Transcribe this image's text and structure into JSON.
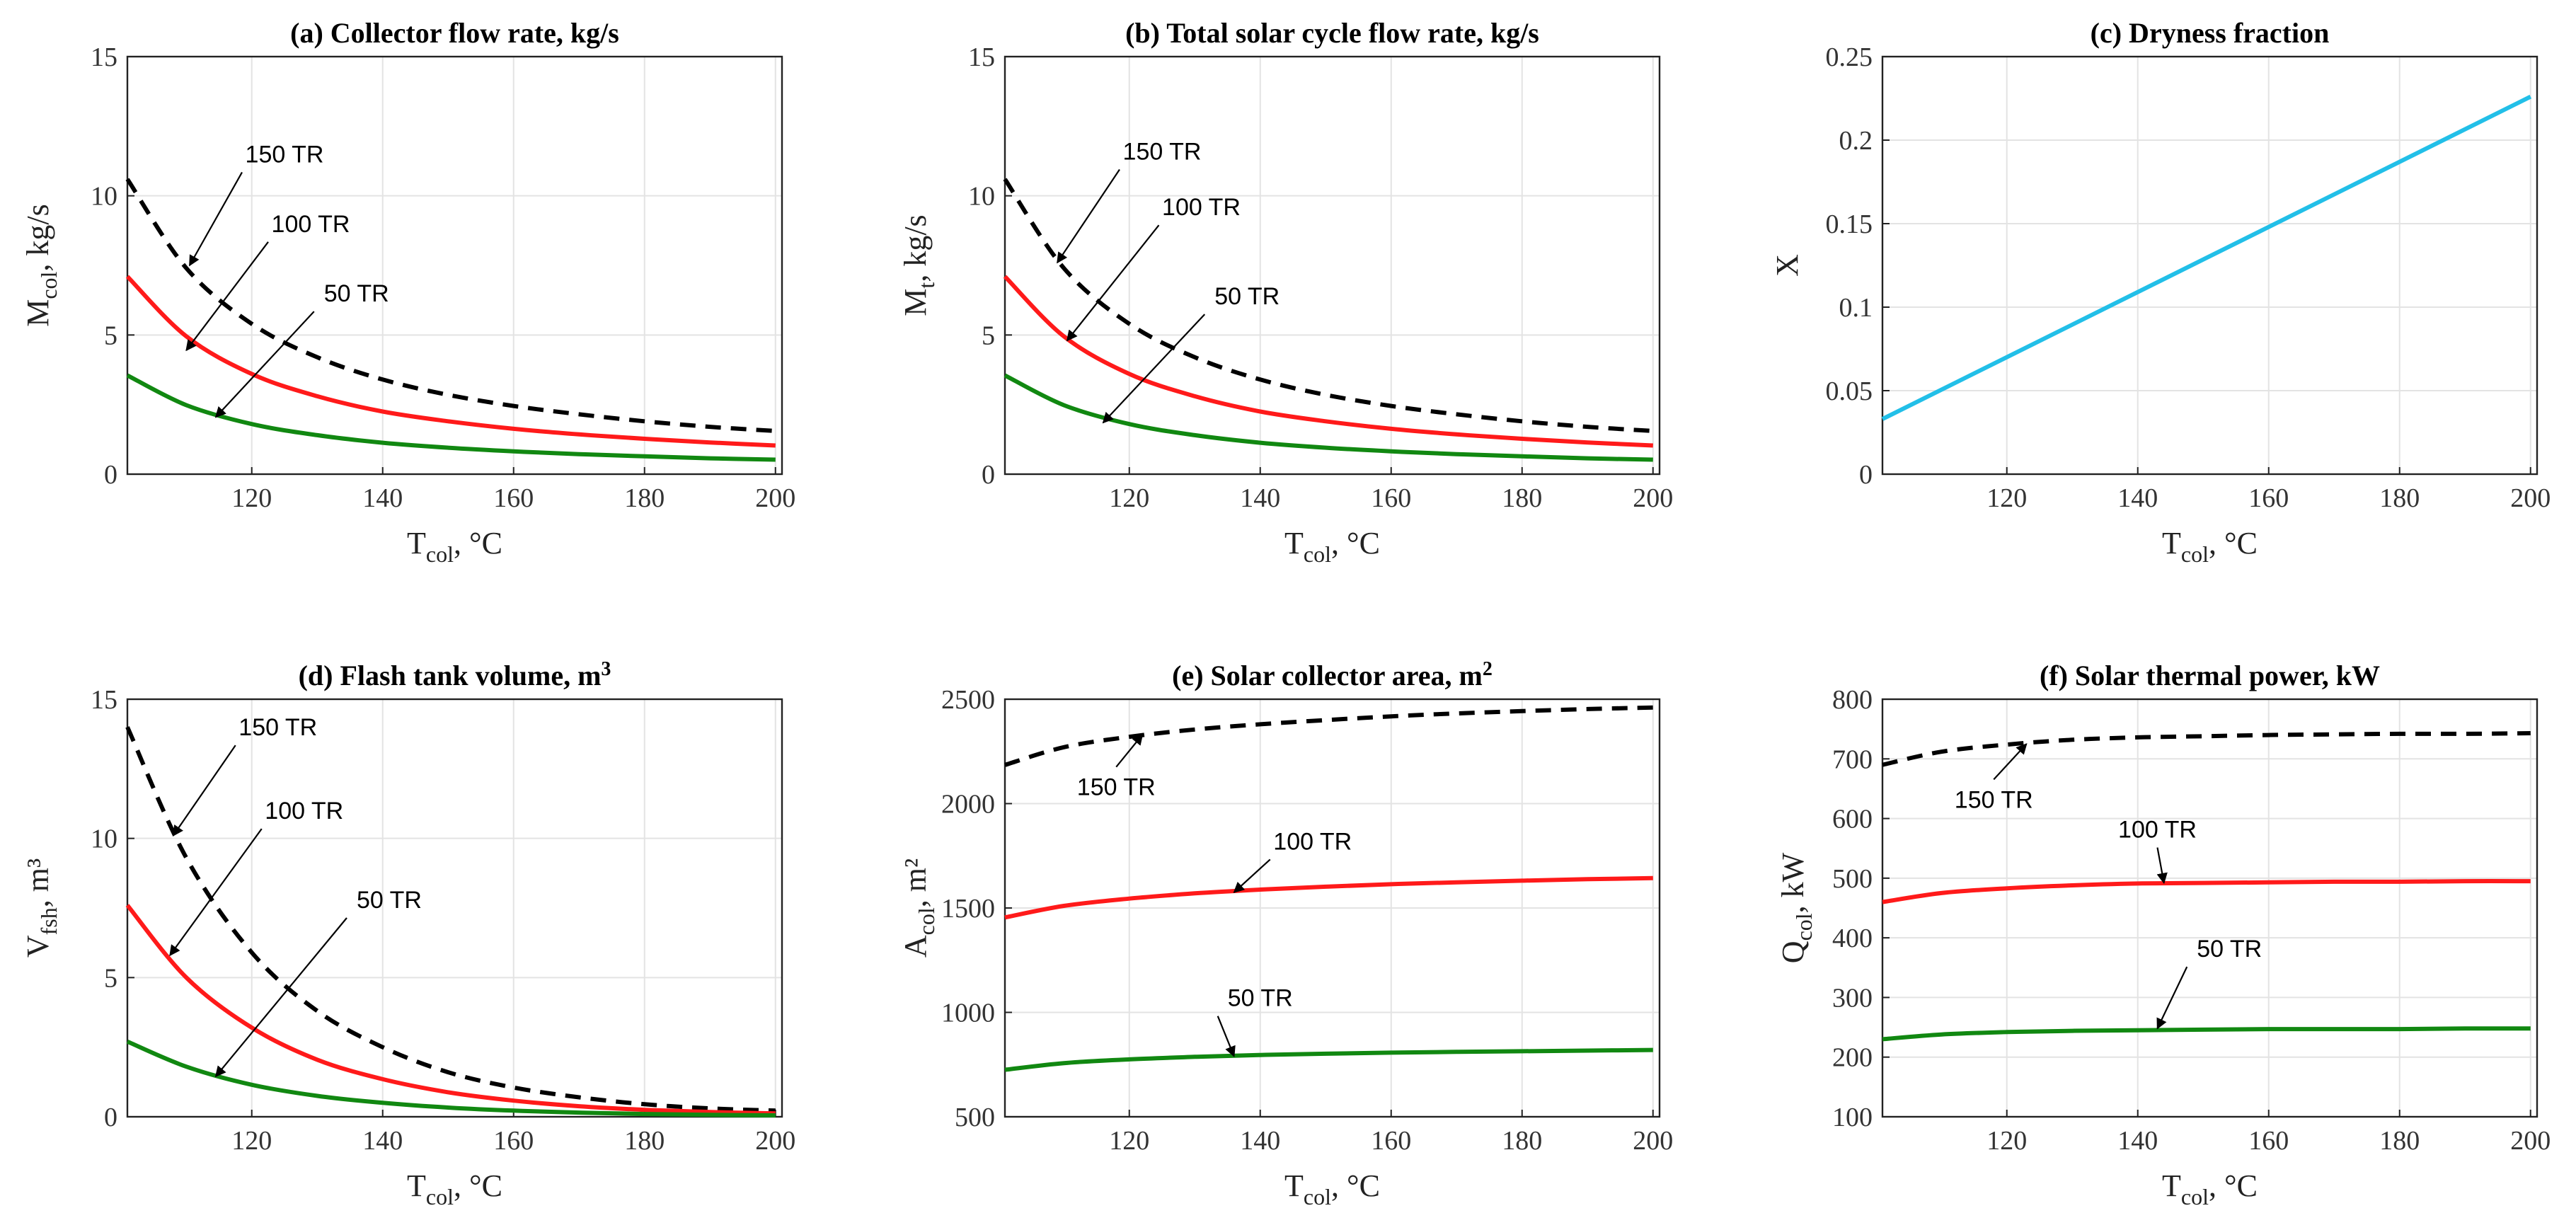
{
  "chart_data": [
    {
      "id": "a",
      "type": "line",
      "title": "(a) Collector flow rate, kg/s",
      "xlabel": {
        "main": "T",
        "sub": "col",
        "unit": ", °C"
      },
      "ylabel": {
        "main": "M",
        "sub": "col",
        "unit": ", kg/s"
      },
      "xlim": [
        101,
        201
      ],
      "ylim": [
        0,
        15
      ],
      "xticks": [
        "120",
        "140",
        "160",
        "180",
        "200"
      ],
      "yticks": [
        "0",
        "5",
        "10",
        "15"
      ],
      "grid": true,
      "x": [
        101,
        110,
        120,
        130,
        140,
        150,
        160,
        170,
        180,
        190,
        200
      ],
      "series": [
        {
          "name": "150 TR",
          "color": "#000000",
          "dash": true,
          "values": [
            10.6,
            7.4,
            5.4,
            4.2,
            3.4,
            2.85,
            2.45,
            2.15,
            1.9,
            1.7,
            1.55
          ]
        },
        {
          "name": "100 TR",
          "color": "#ff1a1a",
          "dash": false,
          "values": [
            7.1,
            4.95,
            3.6,
            2.8,
            2.25,
            1.9,
            1.63,
            1.43,
            1.27,
            1.14,
            1.03
          ]
        },
        {
          "name": "50 TR",
          "color": "#118811",
          "dash": false,
          "values": [
            3.55,
            2.48,
            1.8,
            1.4,
            1.13,
            0.95,
            0.82,
            0.72,
            0.64,
            0.57,
            0.52
          ]
        }
      ],
      "annotations": [
        {
          "text": "150 TR",
          "tx": 125,
          "ty": 11.2,
          "ax": 110.5,
          "ay": 7.5
        },
        {
          "text": "100 TR",
          "tx": 129,
          "ty": 8.7,
          "ax": 110,
          "ay": 4.45
        },
        {
          "text": "50 TR",
          "tx": 136,
          "ty": 6.2,
          "ax": 114.5,
          "ay": 2.05
        }
      ]
    },
    {
      "id": "b",
      "type": "line",
      "title": "(b) Total solar cycle flow rate, kg/s",
      "xlabel": {
        "main": "T",
        "sub": "col",
        "unit": ", °C"
      },
      "ylabel": {
        "main": "M",
        "sub": "t",
        "unit": ", kg/s"
      },
      "xlim": [
        101,
        201
      ],
      "ylim": [
        0,
        15
      ],
      "xticks": [
        "120",
        "140",
        "160",
        "180",
        "200"
      ],
      "yticks": [
        "0",
        "5",
        "10",
        "15"
      ],
      "grid": true,
      "x": [
        101,
        110,
        120,
        130,
        140,
        150,
        160,
        170,
        180,
        190,
        200
      ],
      "series": [
        {
          "name": "150 TR",
          "color": "#000000",
          "dash": true,
          "values": [
            10.6,
            7.4,
            5.4,
            4.2,
            3.4,
            2.85,
            2.45,
            2.15,
            1.9,
            1.7,
            1.55
          ]
        },
        {
          "name": "100 TR",
          "color": "#ff1a1a",
          "dash": false,
          "values": [
            7.1,
            4.95,
            3.6,
            2.8,
            2.25,
            1.9,
            1.63,
            1.43,
            1.27,
            1.14,
            1.03
          ]
        },
        {
          "name": "50 TR",
          "color": "#118811",
          "dash": false,
          "values": [
            3.55,
            2.48,
            1.8,
            1.4,
            1.13,
            0.95,
            0.82,
            0.72,
            0.64,
            0.57,
            0.52
          ]
        }
      ],
      "annotations": [
        {
          "text": "150 TR",
          "tx": 125,
          "ty": 11.3,
          "ax": 109,
          "ay": 7.6
        },
        {
          "text": "100 TR",
          "tx": 131,
          "ty": 9.3,
          "ax": 110.5,
          "ay": 4.8
        },
        {
          "text": "50 TR",
          "tx": 138,
          "ty": 6.1,
          "ax": 116,
          "ay": 1.85
        }
      ]
    },
    {
      "id": "c",
      "type": "line",
      "title": "(c) Dryness fraction",
      "xlabel": {
        "main": "T",
        "sub": "col",
        "unit": ", °C"
      },
      "ylabel": {
        "main": "X",
        "sub": "",
        "unit": ""
      },
      "xlim": [
        101,
        201
      ],
      "ylim": [
        0,
        0.25
      ],
      "xticks": [
        "120",
        "140",
        "160",
        "180",
        "200"
      ],
      "yticks": [
        "0",
        "0.05",
        "0.1",
        "0.15",
        "0.2",
        "0.25"
      ],
      "grid": true,
      "x": [
        101,
        200
      ],
      "series": [
        {
          "name": "X",
          "color": "#22bfe8",
          "dash": false,
          "values": [
            0.033,
            0.226
          ]
        }
      ],
      "annotations": []
    },
    {
      "id": "d",
      "type": "line",
      "title": "(d) Flash tank volume, m",
      "title_sup": "3",
      "xlabel": {
        "main": "T",
        "sub": "col",
        "unit": ", °C"
      },
      "ylabel": {
        "main": "V",
        "sub": "fsh",
        "unit": ", m³"
      },
      "xlim": [
        101,
        201
      ],
      "ylim": [
        0,
        15
      ],
      "xticks": [
        "120",
        "140",
        "160",
        "180",
        "200"
      ],
      "yticks": [
        "0",
        "5",
        "10",
        "15"
      ],
      "grid": true,
      "x": [
        101,
        110,
        120,
        130,
        140,
        150,
        160,
        170,
        180,
        190,
        200
      ],
      "series": [
        {
          "name": "150 TR",
          "color": "#000000",
          "dash": true,
          "values": [
            14.0,
            9.3,
            5.9,
            3.8,
            2.5,
            1.6,
            1.05,
            0.7,
            0.45,
            0.3,
            0.22
          ]
        },
        {
          "name": "100 TR",
          "color": "#ff1a1a",
          "dash": false,
          "values": [
            7.6,
            5.0,
            3.2,
            2.05,
            1.35,
            0.88,
            0.58,
            0.38,
            0.25,
            0.17,
            0.12
          ]
        },
        {
          "name": "50 TR",
          "color": "#118811",
          "dash": false,
          "values": [
            2.7,
            1.8,
            1.15,
            0.75,
            0.5,
            0.33,
            0.22,
            0.15,
            0.1,
            0.07,
            0.05
          ]
        }
      ],
      "annotations": [
        {
          "text": "150 TR",
          "tx": 124,
          "ty": 13.7,
          "ax": 108,
          "ay": 10.1
        },
        {
          "text": "100 TR",
          "tx": 128,
          "ty": 10.7,
          "ax": 107.5,
          "ay": 5.8
        },
        {
          "text": "50 TR",
          "tx": 141,
          "ty": 7.5,
          "ax": 114.5,
          "ay": 1.45
        }
      ]
    },
    {
      "id": "e",
      "type": "line",
      "title": "(e) Solar collector area, m",
      "title_sup": "2",
      "xlabel": {
        "main": "T",
        "sub": "col",
        "unit": ", °C"
      },
      "ylabel": {
        "main": "A",
        "sub": "col",
        "unit": ", m²"
      },
      "xlim": [
        101,
        201
      ],
      "ylim": [
        500,
        2500
      ],
      "xticks": [
        "120",
        "140",
        "160",
        "180",
        "200"
      ],
      "yticks": [
        "500",
        "1000",
        "1500",
        "2000",
        "2500"
      ],
      "grid": true,
      "x": [
        101,
        110,
        120,
        130,
        140,
        150,
        160,
        170,
        180,
        190,
        200
      ],
      "series": [
        {
          "name": "150 TR",
          "color": "#000000",
          "dash": true,
          "values": [
            2185,
            2270,
            2320,
            2355,
            2380,
            2400,
            2418,
            2432,
            2443,
            2453,
            2460
          ]
        },
        {
          "name": "100 TR",
          "color": "#ff1a1a",
          "dash": false,
          "values": [
            1455,
            1510,
            1545,
            1570,
            1588,
            1602,
            1614,
            1623,
            1631,
            1638,
            1643
          ]
        },
        {
          "name": "50 TR",
          "color": "#118811",
          "dash": false,
          "values": [
            725,
            757,
            775,
            787,
            796,
            802,
            807,
            811,
            814,
            817,
            820
          ]
        }
      ],
      "annotations": [
        {
          "text": "150 TR",
          "tx": 118,
          "ty": 2040,
          "ax": 122,
          "ay": 2330
        },
        {
          "text": "100 TR",
          "tx": 148,
          "ty": 1780,
          "ax": 136,
          "ay": 1575
        },
        {
          "text": "50 TR",
          "tx": 140,
          "ty": 1030,
          "ax": 136,
          "ay": 790
        }
      ]
    },
    {
      "id": "f",
      "type": "line",
      "title": "(f) Solar thermal power, kW",
      "xlabel": {
        "main": "T",
        "sub": "col",
        "unit": ", °C"
      },
      "ylabel": {
        "main": "Q",
        "sub": "col",
        "unit": ", kW"
      },
      "xlim": [
        101,
        201
      ],
      "ylim": [
        100,
        800
      ],
      "xticks": [
        "120",
        "140",
        "160",
        "180",
        "200"
      ],
      "yticks": [
        "100",
        "200",
        "300",
        "400",
        "500",
        "600",
        "700",
        "800"
      ],
      "grid": true,
      "x": [
        101,
        110,
        120,
        130,
        140,
        150,
        160,
        170,
        180,
        190,
        200
      ],
      "series": [
        {
          "name": "150 TR",
          "color": "#000000",
          "dash": true,
          "values": [
            690,
            712,
            724,
            732,
            736,
            738,
            740,
            741,
            742,
            742,
            743
          ]
        },
        {
          "name": "100 TR",
          "color": "#ff1a1a",
          "dash": false,
          "values": [
            460,
            475,
            483,
            488,
            491,
            492,
            493,
            494,
            494,
            495,
            495
          ]
        },
        {
          "name": "50 TR",
          "color": "#118811",
          "dash": false,
          "values": [
            230,
            238,
            242,
            244,
            245,
            246,
            247,
            247,
            247,
            248,
            248
          ]
        }
      ],
      "annotations": [
        {
          "text": "150 TR",
          "tx": 118,
          "ty": 618,
          "ax": 123,
          "ay": 725
        },
        {
          "text": "100 TR",
          "tx": 143,
          "ty": 568,
          "ax": 144,
          "ay": 492
        },
        {
          "text": "50 TR",
          "tx": 154,
          "ty": 368,
          "ax": 143,
          "ay": 248
        }
      ]
    }
  ]
}
